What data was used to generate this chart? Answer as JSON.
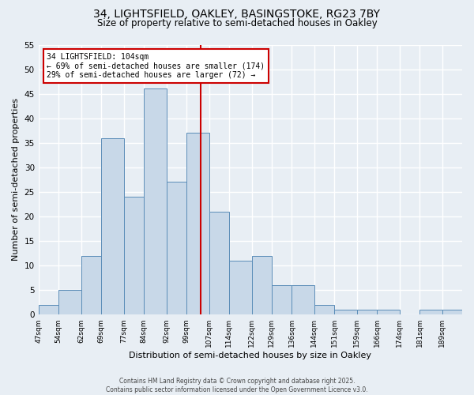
{
  "title_line1": "34, LIGHTSFIELD, OAKLEY, BASINGSTOKE, RG23 7BY",
  "title_line2": "Size of property relative to semi-detached houses in Oakley",
  "xlabel": "Distribution of semi-detached houses by size in Oakley",
  "ylabel": "Number of semi-detached properties",
  "annotation_title": "34 LIGHTSFIELD: 104sqm",
  "annotation_line2": "← 69% of semi-detached houses are smaller (174)",
  "annotation_line3": "29% of semi-detached houses are larger (72) →",
  "footnote_line1": "Contains HM Land Registry data © Crown copyright and database right 2025.",
  "footnote_line2": "Contains public sector information licensed under the Open Government Licence v3.0.",
  "bar_edges": [
    47,
    54,
    62,
    69,
    77,
    84,
    92,
    99,
    107,
    114,
    122,
    129,
    136,
    144,
    151,
    159,
    166,
    174,
    181,
    189,
    196
  ],
  "bar_heights": [
    2,
    5,
    12,
    36,
    24,
    46,
    27,
    37,
    21,
    11,
    12,
    6,
    6,
    2,
    1,
    1,
    1,
    0,
    1,
    1
  ],
  "bar_color": "#c8d8e8",
  "bar_edge_color": "#5b8db8",
  "vline_x": 104,
  "vline_color": "#cc0000",
  "annotation_box_color": "#cc0000",
  "background_color": "#e8eef4",
  "plot_bg_color": "#e8eef4",
  "ylim": [
    0,
    55
  ],
  "yticks": [
    0,
    5,
    10,
    15,
    20,
    25,
    30,
    35,
    40,
    45,
    50,
    55
  ],
  "grid_color": "#ffffff",
  "title_fontsize": 10,
  "subtitle_fontsize": 8.5,
  "xlabel_fontsize": 8,
  "ylabel_fontsize": 8,
  "xtick_fontsize": 6.5,
  "ytick_fontsize": 7.5,
  "footnote_fontsize": 5.5,
  "annot_fontsize": 7
}
